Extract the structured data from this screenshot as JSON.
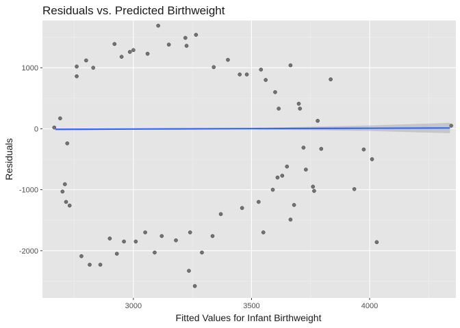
{
  "chart_data": {
    "type": "scatter",
    "title": "Residuals vs. Predicted Birthweight",
    "xlabel": "Fitted Values for Infant Birthweight",
    "ylabel": "Residuals",
    "xlim": [
      2615,
      4365
    ],
    "ylim": [
      -2775,
      1775
    ],
    "x_ticks": [
      3000,
      3500,
      4000
    ],
    "y_ticks": [
      -2000,
      -1000,
      0,
      1000
    ],
    "grid": true,
    "background": "#e5e5e5",
    "grid_major_color": "#ffffff",
    "grid_minor_color": "#f0f0f0",
    "point_color": "#000000",
    "point_alpha": 0.5,
    "smooth_color": "#3366ff",
    "band_color": "#999999",
    "smooth": {
      "x": [
        2670,
        3000,
        3500,
        4000,
        4340
      ],
      "y": [
        -10,
        -5,
        2,
        8,
        12
      ],
      "band_half_width": [
        14,
        7,
        12,
        45,
        85
      ]
    },
    "series": [
      {
        "values": [
          [
            3105,
            1690
          ],
          [
            3265,
            1540
          ],
          [
            3220,
            1490
          ],
          [
            3150,
            1380
          ],
          [
            2920,
            1390
          ],
          [
            3665,
            1040
          ],
          [
            3835,
            810
          ],
          [
            3540,
            970
          ],
          [
            2985,
            1260
          ],
          [
            3060,
            1230
          ],
          [
            2800,
            1120
          ],
          [
            3000,
            1290
          ],
          [
            3340,
            1010
          ],
          [
            3450,
            890
          ],
          [
            2760,
            860
          ],
          [
            2690,
            170
          ],
          [
            2665,
            20
          ],
          [
            2720,
            -240
          ],
          [
            2710,
            -910
          ],
          [
            2730,
            -1260
          ],
          [
            2715,
            -1200
          ],
          [
            2700,
            -1030
          ],
          [
            2780,
            -2090
          ],
          [
            2815,
            -2230
          ],
          [
            2860,
            -2230
          ],
          [
            2930,
            -2050
          ],
          [
            3090,
            -2030
          ],
          [
            3235,
            -2330
          ],
          [
            3260,
            -2580
          ],
          [
            3290,
            -2030
          ],
          [
            3180,
            -1830
          ],
          [
            3050,
            -1700
          ],
          [
            3335,
            -1760
          ],
          [
            3550,
            -1700
          ],
          [
            3760,
            -950
          ],
          [
            3795,
            -330
          ],
          [
            3935,
            -990
          ],
          [
            3975,
            -340
          ],
          [
            4010,
            -500
          ],
          [
            4030,
            -1860
          ],
          [
            4345,
            50
          ],
          [
            3630,
            -770
          ],
          [
            3680,
            -1250
          ],
          [
            3665,
            -1490
          ],
          [
            3765,
            -1020
          ],
          [
            3780,
            130
          ],
          [
            3700,
            410
          ],
          [
            3705,
            330
          ],
          [
            3615,
            330
          ],
          [
            3730,
            -670
          ],
          [
            3590,
            -1000
          ],
          [
            3720,
            -310
          ],
          [
            3650,
            -620
          ],
          [
            3480,
            890
          ],
          [
            3600,
            600
          ],
          [
            2760,
            1020
          ],
          [
            2830,
            1000
          ],
          [
            3225,
            1360
          ],
          [
            2950,
            1180
          ],
          [
            3400,
            1130
          ],
          [
            2900,
            -1800
          ],
          [
            2960,
            -1850
          ],
          [
            3010,
            -1850
          ],
          [
            3120,
            -1760
          ],
          [
            3240,
            -1700
          ],
          [
            3370,
            -1400
          ],
          [
            3460,
            -1300
          ],
          [
            3530,
            -1200
          ],
          [
            3610,
            -800
          ],
          [
            3560,
            800
          ]
        ]
      }
    ]
  }
}
